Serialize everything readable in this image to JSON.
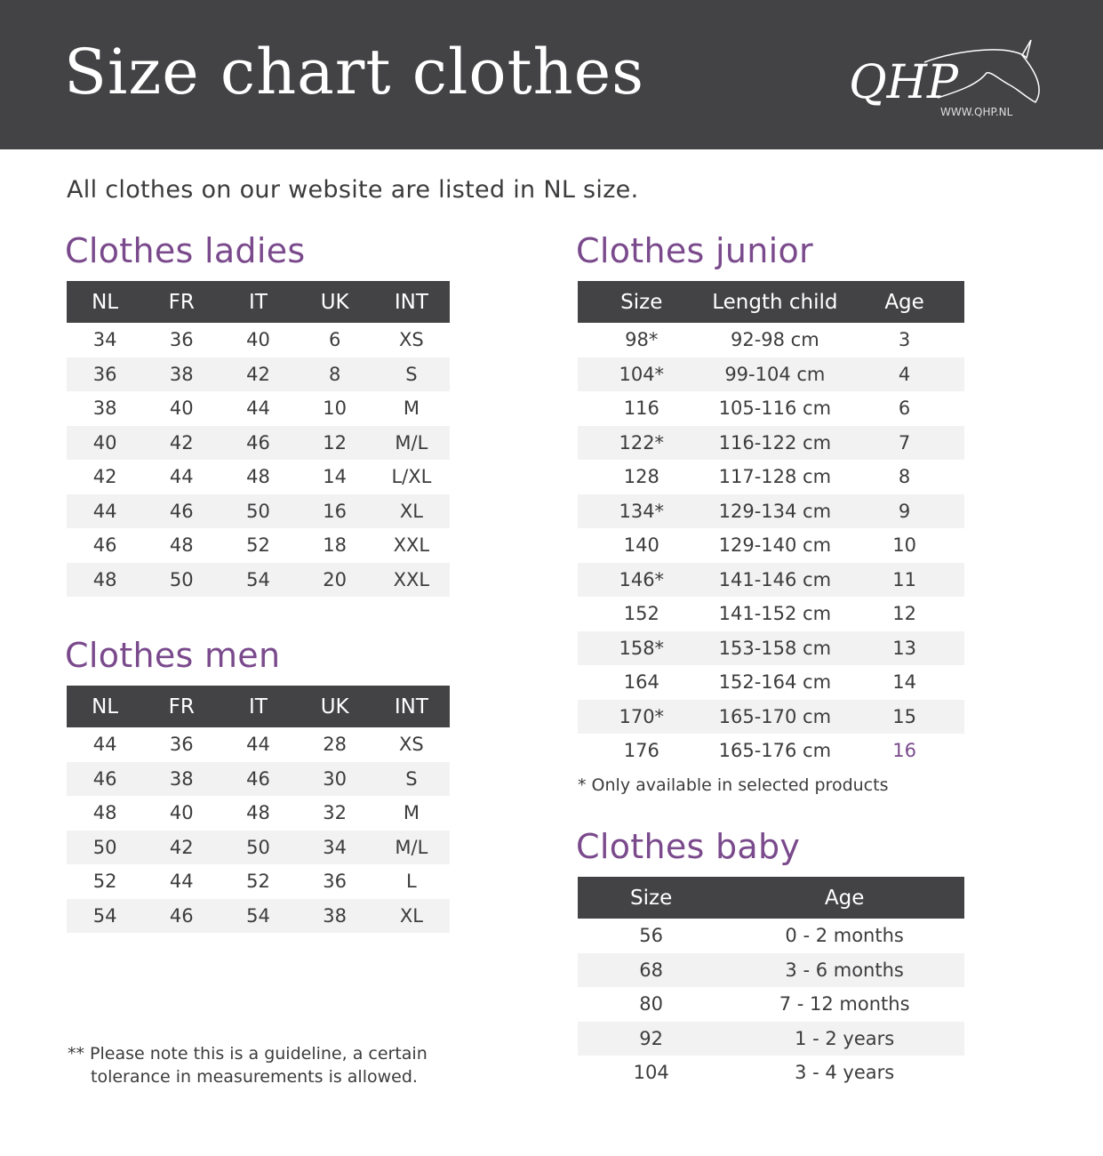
{
  "header": {
    "title": "Size chart clothes",
    "logo_text": "QHP",
    "logo_url_text": "WWW.QHP.NL"
  },
  "intro": "All clothes on our website are listed in NL size.",
  "colors": {
    "header_bg": "#434345",
    "accent": "#7a4a8c",
    "row_alt": "#f2f2f2"
  },
  "ladies": {
    "title": "Clothes ladies",
    "columns": [
      "NL",
      "FR",
      "IT",
      "UK",
      "INT"
    ],
    "rows": [
      [
        "34",
        "36",
        "40",
        "6",
        "XS"
      ],
      [
        "36",
        "38",
        "42",
        "8",
        "S"
      ],
      [
        "38",
        "40",
        "44",
        "10",
        "M"
      ],
      [
        "40",
        "42",
        "46",
        "12",
        "M/L"
      ],
      [
        "42",
        "44",
        "48",
        "14",
        "L/XL"
      ],
      [
        "44",
        "46",
        "50",
        "16",
        "XL"
      ],
      [
        "46",
        "48",
        "52",
        "18",
        "XXL"
      ],
      [
        "48",
        "50",
        "54",
        "20",
        "XXL"
      ]
    ]
  },
  "men": {
    "title": "Clothes men",
    "columns": [
      "NL",
      "FR",
      "IT",
      "UK",
      "INT"
    ],
    "rows": [
      [
        "44",
        "36",
        "44",
        "28",
        "XS"
      ],
      [
        "46",
        "38",
        "46",
        "30",
        "S"
      ],
      [
        "48",
        "40",
        "48",
        "32",
        "M"
      ],
      [
        "50",
        "42",
        "50",
        "34",
        "M/L"
      ],
      [
        "52",
        "44",
        "52",
        "36",
        "L"
      ],
      [
        "54",
        "46",
        "54",
        "38",
        "XL"
      ]
    ]
  },
  "junior": {
    "title": "Clothes junior",
    "columns": [
      "Size",
      "Length child",
      "Age"
    ],
    "rows": [
      [
        "98*",
        "92-98 cm",
        "3"
      ],
      [
        "104*",
        "99-104 cm",
        "4"
      ],
      [
        "116",
        "105-116 cm",
        "6"
      ],
      [
        "122*",
        "116-122 cm",
        "7"
      ],
      [
        "128",
        "117-128 cm",
        "8"
      ],
      [
        "134*",
        "129-134 cm",
        "9"
      ],
      [
        "140",
        "129-140 cm",
        "10"
      ],
      [
        "146*",
        "141-146 cm",
        "11"
      ],
      [
        "152",
        "141-152 cm",
        "12"
      ],
      [
        "158*",
        "153-158 cm",
        "13"
      ],
      [
        "164",
        "152-164 cm",
        "14"
      ],
      [
        "170*",
        "165-170 cm",
        "15"
      ],
      [
        "176",
        "165-176 cm",
        "16"
      ]
    ],
    "footnote": "* Only available in selected products"
  },
  "baby": {
    "title": "Clothes baby",
    "columns": [
      "Size",
      "Age"
    ],
    "rows": [
      [
        "56",
        "0 - 2 months"
      ],
      [
        "68",
        "3 - 6 months"
      ],
      [
        "80",
        "7 - 12 months"
      ],
      [
        "92",
        "1 - 2 years"
      ],
      [
        "104",
        "3 - 4 years"
      ]
    ]
  },
  "guideline_note": {
    "line1": "** Please note this is a guideline, a certain",
    "line2": "tolerance in measurements is allowed."
  }
}
